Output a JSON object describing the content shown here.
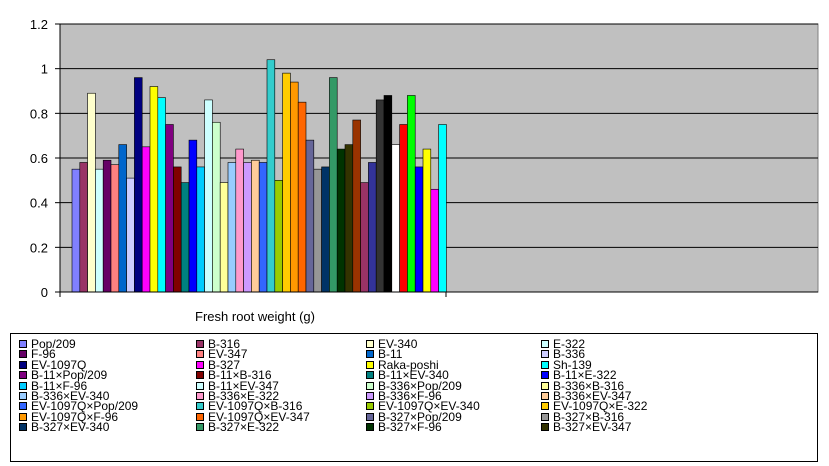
{
  "chart_data": {
    "type": "bar",
    "categories": [
      "Fresh root weight (g)"
    ],
    "xlabel": "Fresh root weight (g)",
    "ylabel": "",
    "title": "",
    "ylim": [
      0,
      1.2
    ],
    "yticks": [
      "0",
      "0.2",
      "0.4",
      "0.6",
      "0.8",
      "1",
      "1.2"
    ],
    "grid": true,
    "plot_background": "#c0c0c0",
    "legend_position": "bottom",
    "series": [
      {
        "name": "Pop/209",
        "color": "#8080ff",
        "values": [
          0.55
        ]
      },
      {
        "name": "B-316",
        "color": "#993366",
        "values": [
          0.58
        ]
      },
      {
        "name": "EV-340",
        "color": "#ffffcc",
        "values": [
          0.89
        ]
      },
      {
        "name": "E-322",
        "color": "#ccffff",
        "values": [
          0.55
        ]
      },
      {
        "name": "F-96",
        "color": "#660066",
        "values": [
          0.59
        ]
      },
      {
        "name": "EV-347",
        "color": "#ff8080",
        "values": [
          0.57
        ]
      },
      {
        "name": "B-11",
        "color": "#0066cc",
        "values": [
          0.66
        ]
      },
      {
        "name": "B-336",
        "color": "#ccccff",
        "values": [
          0.51
        ]
      },
      {
        "name": "EV-1097Q",
        "color": "#000080",
        "values": [
          0.96
        ]
      },
      {
        "name": "B-327",
        "color": "#ff00ff",
        "values": [
          0.65
        ]
      },
      {
        "name": "Raka-poshi",
        "color": "#ffff00",
        "values": [
          0.92
        ]
      },
      {
        "name": "Sh-139",
        "color": "#00ffff",
        "values": [
          0.87
        ]
      },
      {
        "name": "B-11×Pop/209",
        "color": "#800080",
        "values": [
          0.75
        ]
      },
      {
        "name": "B-11×B-316",
        "color": "#800000",
        "values": [
          0.56
        ]
      },
      {
        "name": "B-11×EV-340",
        "color": "#008080",
        "values": [
          0.49
        ]
      },
      {
        "name": "B-11×E-322",
        "color": "#0000ff",
        "values": [
          0.68
        ]
      },
      {
        "name": "B-11×F-96",
        "color": "#00ccff",
        "values": [
          0.56
        ]
      },
      {
        "name": "B-11×EV-347",
        "color": "#ccffff",
        "values": [
          0.86
        ]
      },
      {
        "name": "B-336×Pop/209",
        "color": "#ccffcc",
        "values": [
          0.76
        ]
      },
      {
        "name": "B-336×B-316",
        "color": "#ffff99",
        "values": [
          0.49
        ]
      },
      {
        "name": "B-336×EV-340",
        "color": "#99ccff",
        "values": [
          0.58
        ]
      },
      {
        "name": "B-336×E-322",
        "color": "#ff99cc",
        "values": [
          0.64
        ]
      },
      {
        "name": "B-336×F-96",
        "color": "#cc99ff",
        "values": [
          0.58
        ]
      },
      {
        "name": "B-336×EV-347",
        "color": "#ffcc99",
        "values": [
          0.59
        ]
      },
      {
        "name": "EV-1097Q×Pop/209",
        "color": "#3366ff",
        "values": [
          0.58
        ]
      },
      {
        "name": "EV-1097Q×B-316",
        "color": "#33cccc",
        "values": [
          1.04
        ]
      },
      {
        "name": "EV-1097Q×EV-340",
        "color": "#99cc00",
        "values": [
          0.5
        ]
      },
      {
        "name": "EV-1097Q×E-322",
        "color": "#ffcc00",
        "values": [
          0.98
        ]
      },
      {
        "name": "EV-1097Q×F-96",
        "color": "#ff9900",
        "values": [
          0.94
        ]
      },
      {
        "name": "EV-1097Q×EV-347",
        "color": "#ff6600",
        "values": [
          0.85
        ]
      },
      {
        "name": "B-327×Pop/209",
        "color": "#666699",
        "values": [
          0.68
        ]
      },
      {
        "name": "B-327×B-316",
        "color": "#969696",
        "values": [
          0.55
        ]
      },
      {
        "name": "B-327×EV-340",
        "color": "#003366",
        "values": [
          0.56
        ]
      },
      {
        "name": "B-327×E-322",
        "color": "#339966",
        "values": [
          0.96
        ]
      },
      {
        "name": "B-327×F-96",
        "color": "#003300",
        "values": [
          0.64
        ]
      },
      {
        "name": "B-327×EV-347",
        "color": "#333300",
        "values": [
          0.66
        ]
      },
      {
        "name": "",
        "color": "#993300",
        "values": [
          0.77
        ]
      },
      {
        "name": "",
        "color": "#993366",
        "values": [
          0.49
        ]
      },
      {
        "name": "",
        "color": "#333399",
        "values": [
          0.58
        ]
      },
      {
        "name": "",
        "color": "#333333",
        "values": [
          0.86
        ]
      },
      {
        "name": "",
        "color": "#000000",
        "values": [
          0.88
        ]
      },
      {
        "name": "",
        "color": "#ffffff",
        "values": [
          0.66
        ]
      },
      {
        "name": "",
        "color": "#ff0000",
        "values": [
          0.75
        ]
      },
      {
        "name": "",
        "color": "#00ff00",
        "values": [
          0.88
        ]
      },
      {
        "name": "",
        "color": "#0000ff",
        "values": [
          0.56
        ]
      },
      {
        "name": "",
        "color": "#ffff00",
        "values": [
          0.64
        ]
      },
      {
        "name": "",
        "color": "#ff00ff",
        "values": [
          0.46
        ]
      },
      {
        "name": "",
        "color": "#00ffff",
        "values": [
          0.75
        ]
      }
    ]
  }
}
